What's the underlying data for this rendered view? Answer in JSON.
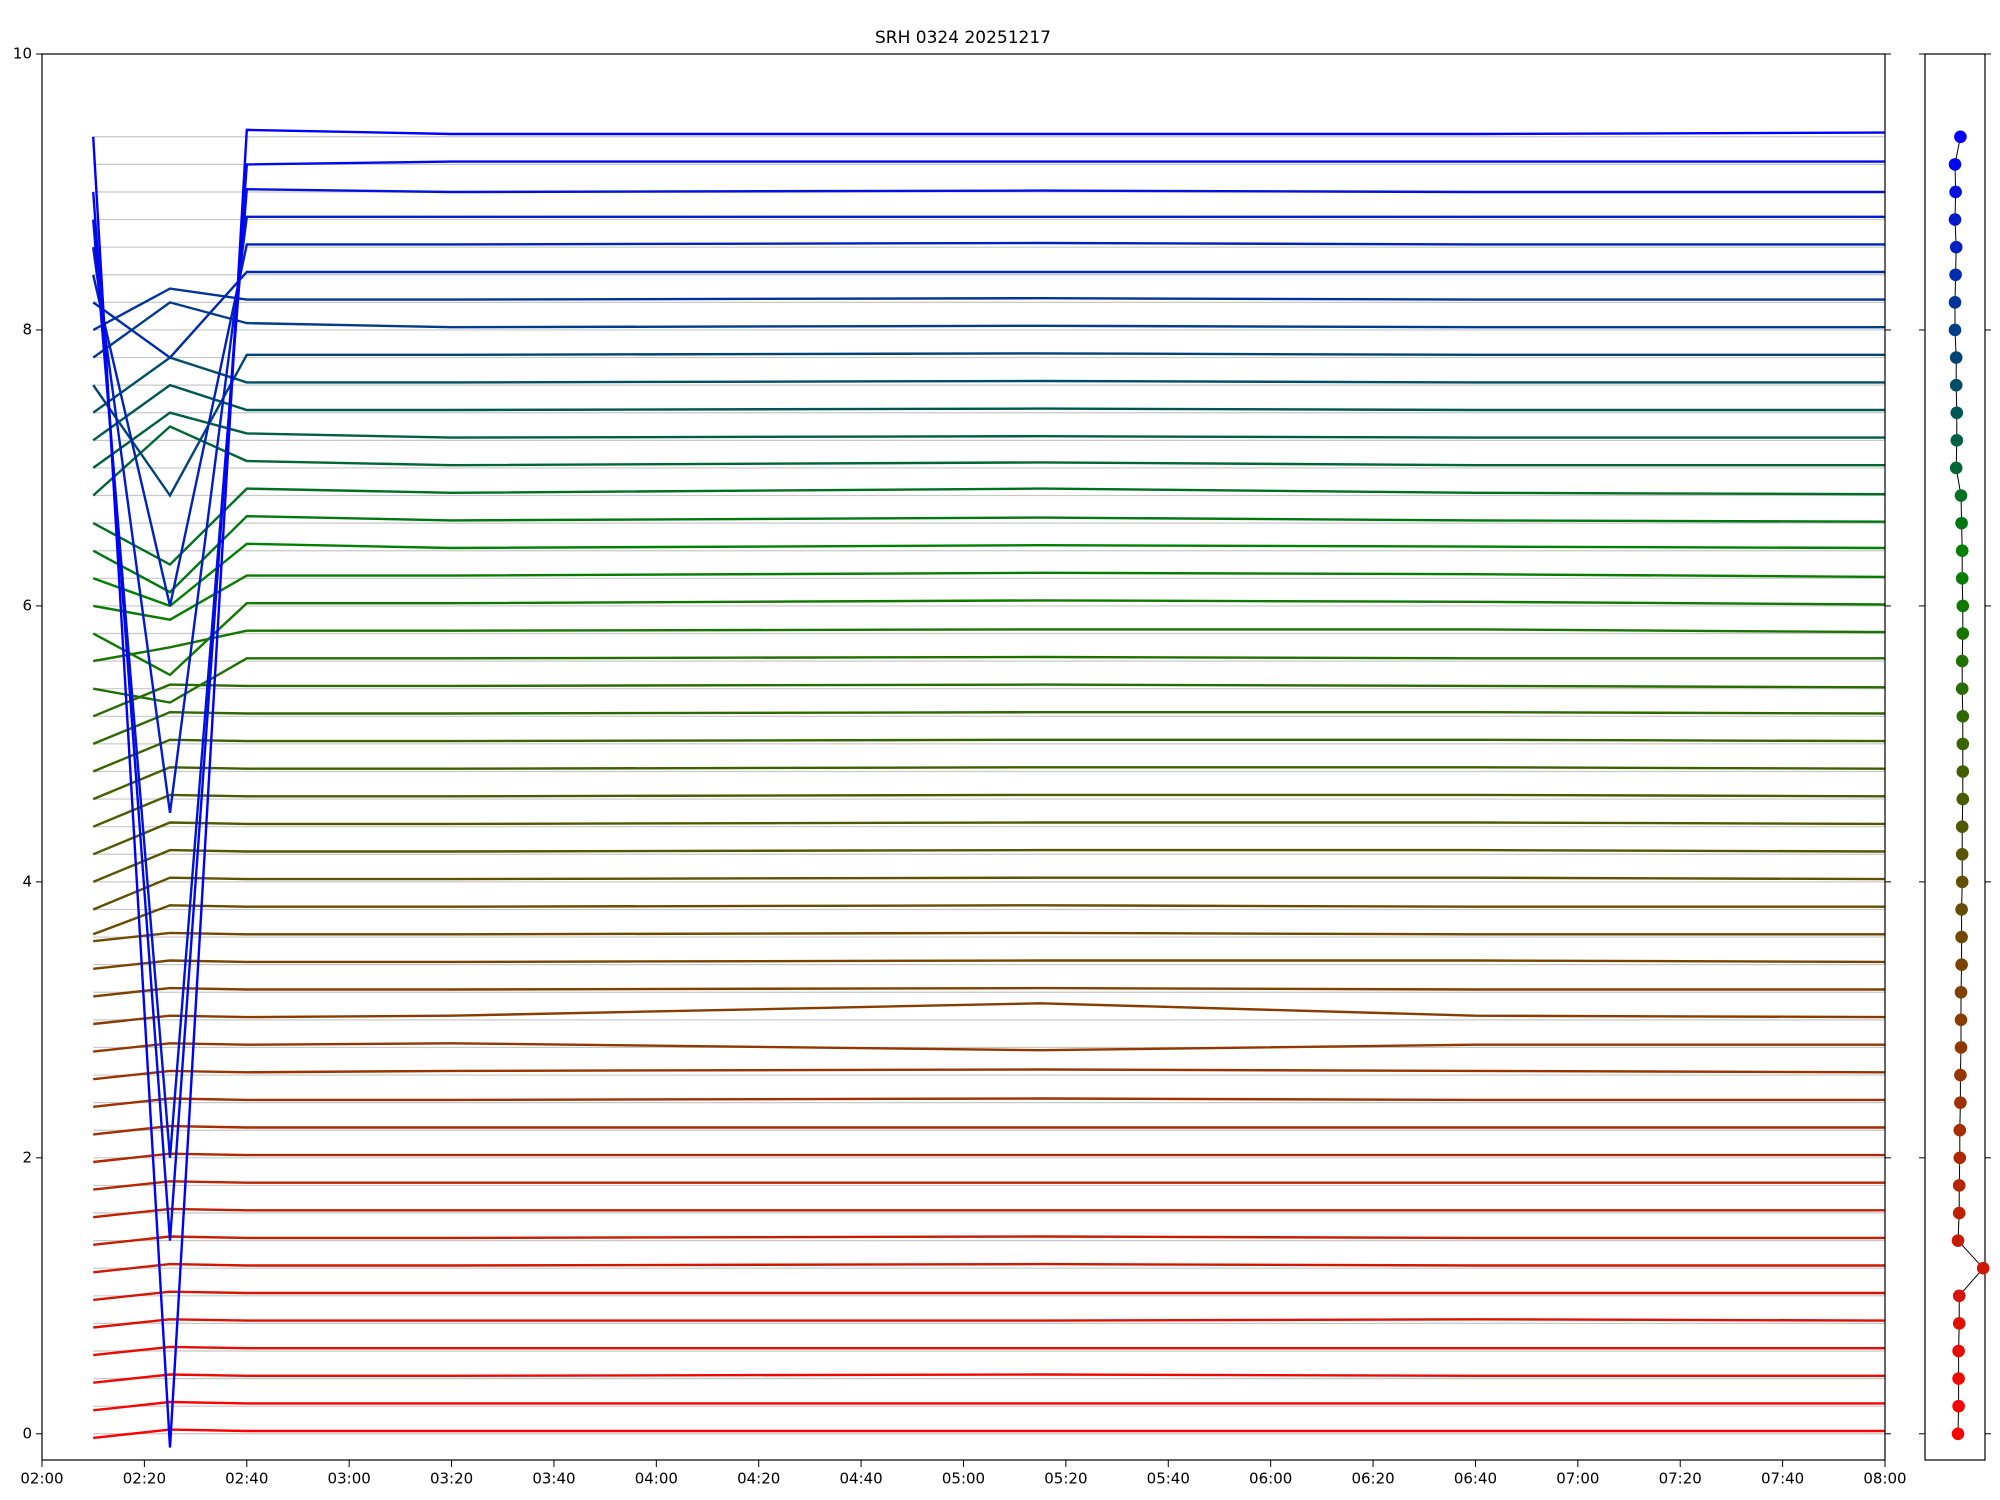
{
  "chart_data": [
    {
      "type": "line",
      "title": "SRH 0324 20251217",
      "x": [
        130,
        145,
        160,
        200,
        315,
        400,
        480
      ],
      "xlim": [
        120,
        480
      ],
      "xticks": [
        {
          "value": 120,
          "label": "02:00"
        },
        {
          "value": 140,
          "label": "02:20"
        },
        {
          "value": 160,
          "label": "02:40"
        },
        {
          "value": 180,
          "label": "03:00"
        },
        {
          "value": 200,
          "label": "03:20"
        },
        {
          "value": 220,
          "label": "03:40"
        },
        {
          "value": 240,
          "label": "04:00"
        },
        {
          "value": 260,
          "label": "04:20"
        },
        {
          "value": 280,
          "label": "04:40"
        },
        {
          "value": 300,
          "label": "05:00"
        },
        {
          "value": 320,
          "label": "05:20"
        },
        {
          "value": 340,
          "label": "05:40"
        },
        {
          "value": 360,
          "label": "06:00"
        },
        {
          "value": 380,
          "label": "06:20"
        },
        {
          "value": 400,
          "label": "06:40"
        },
        {
          "value": 420,
          "label": "07:00"
        },
        {
          "value": 440,
          "label": "07:20"
        },
        {
          "value": 460,
          "label": "07:40"
        },
        {
          "value": 480,
          "label": "08:00"
        }
      ],
      "ylim": [
        -0.19,
        10
      ],
      "yticks": [
        0,
        2,
        4,
        6,
        8,
        10
      ],
      "series": [
        {
          "color": "#ff0000",
          "values": [
            -0.03,
            0.03,
            0.02,
            0.02,
            0.02,
            0.02,
            0.02
          ]
        },
        {
          "color": "#f70400",
          "values": [
            0.17,
            0.23,
            0.22,
            0.22,
            0.22,
            0.22,
            0.22
          ]
        },
        {
          "color": "#ef0800",
          "values": [
            0.37,
            0.43,
            0.42,
            0.42,
            0.43,
            0.42,
            0.42
          ]
        },
        {
          "color": "#e70c00",
          "values": [
            0.57,
            0.63,
            0.62,
            0.62,
            0.62,
            0.62,
            0.62
          ]
        },
        {
          "color": "#df1000",
          "values": [
            0.77,
            0.83,
            0.82,
            0.82,
            0.82,
            0.83,
            0.82
          ]
        },
        {
          "color": "#d71400",
          "values": [
            0.97,
            1.03,
            1.02,
            1.02,
            1.02,
            1.02,
            1.02
          ]
        },
        {
          "color": "#cf1800",
          "values": [
            1.17,
            1.23,
            1.22,
            1.22,
            1.23,
            1.22,
            1.22
          ]
        },
        {
          "color": "#c71c00",
          "values": [
            1.37,
            1.43,
            1.42,
            1.42,
            1.43,
            1.42,
            1.42
          ]
        },
        {
          "color": "#bf2000",
          "values": [
            1.57,
            1.63,
            1.62,
            1.62,
            1.62,
            1.62,
            1.62
          ]
        },
        {
          "color": "#b72400",
          "values": [
            1.77,
            1.83,
            1.82,
            1.82,
            1.82,
            1.82,
            1.82
          ]
        },
        {
          "color": "#af2800",
          "values": [
            1.97,
            2.03,
            2.02,
            2.02,
            2.02,
            2.02,
            2.02
          ]
        },
        {
          "color": "#a72c00",
          "values": [
            2.17,
            2.23,
            2.22,
            2.22,
            2.22,
            2.22,
            2.22
          ]
        },
        {
          "color": "#9f3000",
          "values": [
            2.37,
            2.43,
            2.42,
            2.42,
            2.43,
            2.42,
            2.42
          ]
        },
        {
          "color": "#983400",
          "values": [
            2.57,
            2.63,
            2.62,
            2.63,
            2.64,
            2.63,
            2.62
          ]
        },
        {
          "color": "#903800",
          "values": [
            2.77,
            2.83,
            2.82,
            2.83,
            2.78,
            2.82,
            2.82
          ]
        },
        {
          "color": "#883c00",
          "values": [
            2.97,
            3.03,
            3.02,
            3.03,
            3.12,
            3.03,
            3.02
          ]
        },
        {
          "color": "#804000",
          "values": [
            3.17,
            3.23,
            3.22,
            3.22,
            3.23,
            3.22,
            3.22
          ]
        },
        {
          "color": "#784400",
          "values": [
            3.37,
            3.43,
            3.42,
            3.42,
            3.43,
            3.43,
            3.42
          ]
        },
        {
          "color": "#704800",
          "values": [
            3.57,
            3.63,
            3.62,
            3.62,
            3.63,
            3.62,
            3.62
          ]
        },
        {
          "color": "#684c00",
          "values": [
            3.62,
            3.83,
            3.82,
            3.82,
            3.83,
            3.82,
            3.82
          ]
        },
        {
          "color": "#605000",
          "values": [
            3.8,
            4.03,
            4.02,
            4.02,
            4.03,
            4.03,
            4.02
          ]
        },
        {
          "color": "#585400",
          "values": [
            4.0,
            4.23,
            4.22,
            4.22,
            4.23,
            4.23,
            4.22
          ]
        },
        {
          "color": "#505800",
          "values": [
            4.2,
            4.43,
            4.42,
            4.42,
            4.43,
            4.43,
            4.42
          ]
        },
        {
          "color": "#485c00",
          "values": [
            4.4,
            4.63,
            4.62,
            4.62,
            4.63,
            4.63,
            4.62
          ]
        },
        {
          "color": "#406000",
          "values": [
            4.6,
            4.83,
            4.82,
            4.82,
            4.83,
            4.83,
            4.82
          ]
        },
        {
          "color": "#386400",
          "values": [
            4.8,
            5.03,
            5.02,
            5.02,
            5.03,
            5.03,
            5.02
          ]
        },
        {
          "color": "#306800",
          "values": [
            5.0,
            5.23,
            5.22,
            5.22,
            5.23,
            5.23,
            5.22
          ]
        },
        {
          "color": "#286c00",
          "values": [
            5.2,
            5.43,
            5.42,
            5.42,
            5.43,
            5.42,
            5.41
          ]
        },
        {
          "color": "#207000",
          "values": [
            5.4,
            5.3,
            5.62,
            5.62,
            5.63,
            5.62,
            5.62
          ]
        },
        {
          "color": "#187400",
          "values": [
            5.6,
            5.7,
            5.82,
            5.82,
            5.83,
            5.83,
            5.81
          ]
        },
        {
          "color": "#107800",
          "values": [
            5.8,
            5.5,
            6.02,
            6.02,
            6.04,
            6.03,
            6.01
          ]
        },
        {
          "color": "#087c00",
          "values": [
            6.0,
            5.9,
            6.22,
            6.22,
            6.24,
            6.23,
            6.21
          ]
        },
        {
          "color": "#008000",
          "values": [
            6.2,
            6.0,
            6.45,
            6.42,
            6.44,
            6.43,
            6.42
          ]
        },
        {
          "color": "#007711",
          "values": [
            6.4,
            6.1,
            6.65,
            6.62,
            6.64,
            6.62,
            6.61
          ]
        },
        {
          "color": "#006f22",
          "values": [
            6.6,
            6.3,
            6.85,
            6.82,
            6.85,
            6.82,
            6.81
          ]
        },
        {
          "color": "#006633",
          "values": [
            6.8,
            7.3,
            7.05,
            7.02,
            7.04,
            7.02,
            7.02
          ]
        },
        {
          "color": "#005e44",
          "values": [
            7.0,
            7.4,
            7.25,
            7.22,
            7.23,
            7.22,
            7.22
          ]
        },
        {
          "color": "#005555",
          "values": [
            7.2,
            7.6,
            7.42,
            7.42,
            7.43,
            7.42,
            7.42
          ]
        },
        {
          "color": "#004d66",
          "values": [
            7.4,
            7.8,
            7.62,
            7.62,
            7.63,
            7.62,
            7.62
          ]
        },
        {
          "color": "#004477",
          "values": [
            7.6,
            6.8,
            7.82,
            7.82,
            7.83,
            7.82,
            7.82
          ]
        },
        {
          "color": "#003c88",
          "values": [
            7.8,
            8.2,
            8.05,
            8.02,
            8.03,
            8.02,
            8.02
          ]
        },
        {
          "color": "#003399",
          "values": [
            8.0,
            8.3,
            8.22,
            8.22,
            8.23,
            8.22,
            8.22
          ]
        },
        {
          "color": "#002baa",
          "values": [
            8.2,
            7.8,
            8.42,
            8.42,
            8.42,
            8.42,
            8.42
          ]
        },
        {
          "color": "#0022bb",
          "values": [
            8.4,
            6.0,
            8.62,
            8.62,
            8.63,
            8.62,
            8.62
          ]
        },
        {
          "color": "#001acc",
          "values": [
            8.6,
            4.5,
            8.82,
            8.82,
            8.82,
            8.82,
            8.82
          ]
        },
        {
          "color": "#0011dd",
          "values": [
            8.8,
            2.0,
            9.02,
            9.0,
            9.01,
            9.0,
            9.0
          ]
        },
        {
          "color": "#0009ee",
          "values": [
            9.0,
            1.4,
            9.2,
            9.22,
            9.22,
            9.22,
            9.22
          ]
        },
        {
          "color": "#0000ff",
          "values": [
            9.4,
            -0.1,
            9.45,
            9.42,
            9.42,
            9.42,
            9.43
          ]
        }
      ]
    },
    {
      "type": "scatter",
      "xlim": [
        0,
        1
      ],
      "ylim": [
        -0.19,
        10
      ],
      "yticks": [
        0,
        2,
        4,
        6,
        8,
        10
      ],
      "line_color": "#000000",
      "x": [
        0.55,
        0.56,
        0.56,
        0.56,
        0.57,
        0.57,
        0.97,
        0.55,
        0.57,
        0.57,
        0.58,
        0.58,
        0.59,
        0.59,
        0.6,
        0.6,
        0.6,
        0.61,
        0.61,
        0.61,
        0.62,
        0.62,
        0.62,
        0.63,
        0.63,
        0.63,
        0.63,
        0.62,
        0.62,
        0.63,
        0.63,
        0.62,
        0.62,
        0.61,
        0.6,
        0.52,
        0.53,
        0.53,
        0.52,
        0.52,
        0.5,
        0.5,
        0.51,
        0.52,
        0.5,
        0.51,
        0.5,
        0.59
      ],
      "values": [
        0,
        0.2,
        0.4,
        0.6,
        0.8,
        1.0,
        1.2,
        1.4,
        1.6,
        1.8,
        2.0,
        2.2,
        2.4,
        2.6,
        2.8,
        3.0,
        3.2,
        3.4,
        3.6,
        3.8,
        4.0,
        4.2,
        4.4,
        4.6,
        4.8,
        5.0,
        5.2,
        5.4,
        5.6,
        5.8,
        6.0,
        6.2,
        6.4,
        6.6,
        6.8,
        7.0,
        7.2,
        7.4,
        7.6,
        7.8,
        8.0,
        8.2,
        8.4,
        8.6,
        8.8,
        9.0,
        9.2,
        9.4
      ]
    }
  ]
}
